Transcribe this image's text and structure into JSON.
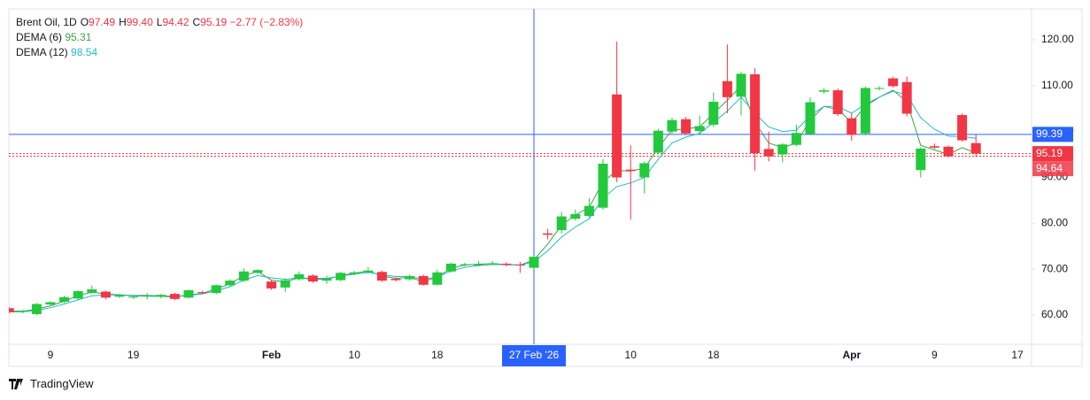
{
  "header": {
    "symbol": "Brent Oil, 1D",
    "ohlc": [
      {
        "letter": "O",
        "value": "97.49"
      },
      {
        "letter": "H",
        "value": "99.40"
      },
      {
        "letter": "L",
        "value": "94.42"
      },
      {
        "letter": "C",
        "value": "95.19"
      }
    ],
    "change": "−2.77 (−2.83%)"
  },
  "chart_data": {
    "type": "candlestick",
    "categories": [
      null,
      null,
      null,
      "9",
      null,
      null,
      null,
      null,
      null,
      "19",
      null,
      null,
      null,
      null,
      null,
      null,
      null,
      null,
      null,
      "Feb",
      null,
      null,
      null,
      null,
      null,
      "10",
      null,
      null,
      null,
      null,
      null,
      "18",
      null,
      null,
      null,
      null,
      null,
      null,
      "27 Feb '26",
      null,
      null,
      null,
      null,
      null,
      null,
      "10",
      null,
      null,
      null,
      null,
      null,
      "18",
      null,
      null,
      null,
      null,
      null,
      null,
      null,
      null,
      null,
      "Apr",
      null,
      null,
      null,
      null,
      null,
      "9",
      null,
      null,
      null,
      null,
      null,
      "17"
    ],
    "open": [
      61.5,
      60.7,
      60.2,
      62.3,
      62.9,
      63.6,
      64.9,
      65.1,
      64.0,
      63.8,
      64.2,
      64.0,
      64.6,
      63.8,
      65.0,
      64.8,
      66.5,
      67.5,
      69.2,
      67.3,
      66.0,
      67.8,
      68.6,
      67.5,
      67.6,
      69.0,
      69.3,
      69.4,
      67.9,
      67.8,
      68.5,
      66.6,
      69.5,
      70.9,
      70.9,
      71.2,
      71.2,
      71.0,
      70.3,
      77.8,
      78.5,
      81.0,
      81.6,
      83.4,
      108.1,
      91.7,
      90.0,
      95.4,
      100.0,
      102.7,
      100.1,
      101.5,
      111.0,
      107.6,
      112.5,
      96.2,
      95.0,
      97.1,
      99.5,
      108.7,
      109.0,
      102.9,
      99.6,
      109.3,
      111.6,
      110.8,
      91.6,
      96.8,
      96.7,
      103.6,
      97.49,
      null,
      null,
      null
    ],
    "high": [
      61.8,
      61.2,
      62.6,
      63.0,
      64.2,
      65.4,
      66.4,
      65.3,
      64.6,
      64.3,
      64.8,
      64.6,
      64.9,
      65.6,
      65.3,
      66.7,
      67.8,
      70.2,
      70.0,
      67.6,
      68.0,
      69.5,
      68.9,
      68.6,
      69.4,
      69.6,
      70.5,
      69.7,
      68.2,
      68.8,
      68.8,
      69.9,
      71.4,
      71.4,
      71.8,
      71.8,
      71.5,
      71.6,
      72.9,
      78.8,
      82.5,
      83.0,
      85.5,
      94.0,
      119.6,
      97.0,
      93.5,
      100.6,
      103.0,
      103.2,
      103.5,
      108.5,
      119.0,
      113.0,
      113.8,
      100.0,
      97.5,
      101.5,
      107.5,
      109.5,
      109.4,
      104.0,
      109.8,
      109.9,
      112.0,
      112.0,
      96.6,
      97.4,
      97.0,
      104.0,
      99.4,
      null,
      null,
      null
    ],
    "low": [
      60.3,
      60.4,
      60.0,
      62.0,
      62.6,
      63.3,
      64.6,
      63.4,
      63.7,
      63.5,
      63.4,
      63.6,
      63.2,
      63.6,
      64.6,
      64.5,
      66.2,
      67.2,
      69.0,
      65.5,
      65.0,
      67.5,
      67.0,
      66.8,
      67.4,
      68.7,
      69.0,
      67.2,
      67.3,
      67.5,
      66.4,
      66.4,
      69.3,
      70.6,
      70.6,
      70.9,
      70.6,
      69.2,
      70.1,
      76.5,
      77.8,
      80.6,
      81.2,
      83.0,
      89.0,
      80.8,
      86.5,
      95.0,
      99.5,
      99.2,
      99.5,
      101.0,
      104.0,
      103.5,
      91.5,
      93.5,
      93.3,
      96.8,
      99.2,
      108.3,
      103.4,
      98.0,
      99.2,
      109.0,
      109.6,
      103.3,
      90.0,
      96.2,
      94.3,
      97.8,
      94.42,
      null,
      null,
      null
    ],
    "close": [
      60.6,
      60.9,
      62.4,
      62.8,
      63.9,
      65.2,
      65.6,
      63.8,
      64.4,
      64.0,
      64.3,
      64.4,
      63.5,
      65.4,
      64.8,
      66.5,
      67.5,
      69.5,
      69.8,
      65.8,
      67.6,
      68.9,
      67.3,
      67.9,
      69.2,
      69.3,
      69.7,
      67.5,
      67.6,
      68.5,
      66.6,
      69.3,
      71.2,
      71.1,
      71.0,
      71.3,
      70.9,
      70.8,
      72.7,
      77.5,
      81.5,
      82.0,
      83.8,
      93.0,
      90.0,
      91.4,
      93.1,
      100.2,
      102.5,
      99.6,
      101.2,
      106.5,
      107.5,
      112.6,
      95.3,
      94.6,
      97.2,
      99.7,
      106.4,
      109.0,
      103.8,
      99.3,
      109.5,
      109.5,
      109.9,
      103.9,
      96.3,
      96.5,
      94.6,
      98.1,
      95.19,
      null,
      null,
      null
    ],
    "up_color": "#22c93d",
    "down_color": "#f23645",
    "series": [
      {
        "name": "DEMA (6)",
        "color": "#43a047",
        "values": [
          60.9,
          60.8,
          61.3,
          62.0,
          63.0,
          64.2,
          65.0,
          64.6,
          64.4,
          64.2,
          64.1,
          64.1,
          63.9,
          64.4,
          64.7,
          65.7,
          66.8,
          68.6,
          69.5,
          67.6,
          67.3,
          68.1,
          67.8,
          67.8,
          68.6,
          69.1,
          69.6,
          68.5,
          68.0,
          68.2,
          67.3,
          68.3,
          70.2,
          70.9,
          71.1,
          71.2,
          71.0,
          70.9,
          72.0,
          75.5,
          79.6,
          81.8,
          83.5,
          89.0,
          91.5,
          91.4,
          92.0,
          96.5,
          100.3,
          100.6,
          101.0,
          104.0,
          106.8,
          110.0,
          102.0,
          97.5,
          96.5,
          97.5,
          102.5,
          105.5,
          104.8,
          102.0,
          105.5,
          107.5,
          109.0,
          106.5,
          97.0,
          96.0,
          95.0,
          96.5,
          95.31,
          null,
          null,
          null
        ]
      },
      {
        "name": "DEMA (12)",
        "color": "#22b8cf",
        "values": [
          60.7,
          60.7,
          61.0,
          61.6,
          62.4,
          63.3,
          64.2,
          64.4,
          64.4,
          64.3,
          64.3,
          64.2,
          64.1,
          64.3,
          64.6,
          65.3,
          66.2,
          67.6,
          68.6,
          68.1,
          67.8,
          68.1,
          68.0,
          68.0,
          68.5,
          68.9,
          69.3,
          68.8,
          68.4,
          68.4,
          67.8,
          68.3,
          69.6,
          70.4,
          70.8,
          71.0,
          71.0,
          70.9,
          71.6,
          74.0,
          77.0,
          79.2,
          81.0,
          85.5,
          88.0,
          88.8,
          90.0,
          94.0,
          97.5,
          98.8,
          99.6,
          102.0,
          104.5,
          107.5,
          104.0,
          101.0,
          100.0,
          100.3,
          103.5,
          105.5,
          105.5,
          104.0,
          106.0,
          107.5,
          108.8,
          108.0,
          103.0,
          100.5,
          99.0,
          98.9,
          98.54,
          null,
          null,
          null
        ]
      }
    ],
    "ylim": [
      53.63,
      126.76
    ],
    "yticks": [
      {
        "value": 60,
        "label": "60.00"
      },
      {
        "value": 70,
        "label": "70.00"
      },
      {
        "value": 80,
        "label": "80.00"
      },
      {
        "value": 90,
        "label": "90.00"
      },
      {
        "value": 100,
        "label": "100.00"
      },
      {
        "value": 110,
        "label": "110.00"
      },
      {
        "value": 120,
        "label": "120.00"
      }
    ],
    "grid": false,
    "crosshair": {
      "x": "27 Feb '26",
      "y": 99.39,
      "color": "#2962ff"
    },
    "price_lines": [
      {
        "value": 95.19,
        "color": "#f23645"
      },
      {
        "value": 94.64,
        "color": "#f23645"
      }
    ]
  },
  "footer": {
    "brand": "TradingView"
  }
}
